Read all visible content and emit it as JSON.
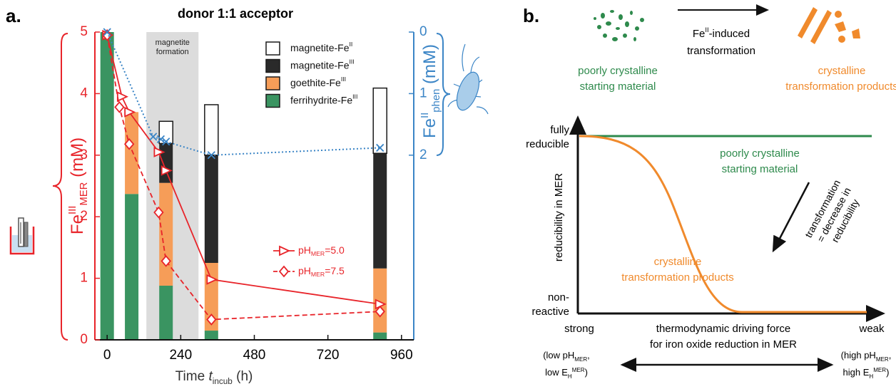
{
  "chart_data": {
    "type": "bar",
    "label": "a.",
    "title": "donor 1:1 acceptor",
    "xlabel": [
      {
        "t": "Time "
      },
      {
        "t": "t",
        "italic": true
      },
      {
        "t": "incub",
        "sub": true
      },
      {
        "t": " (h)"
      }
    ],
    "ylabel": [
      {
        "t": "Fe"
      },
      {
        "t": "III",
        "sup": true
      },
      {
        "t": "MER",
        "sub": true
      },
      {
        "t": " (mM)"
      }
    ],
    "y2label": [
      {
        "t": "Fe"
      },
      {
        "t": "II",
        "sup": true
      },
      {
        "t": "phen",
        "sub": true
      },
      {
        "t": " (mM)"
      }
    ],
    "x": [
      0,
      80,
      192,
      340,
      890
    ],
    "xlim": [
      -40,
      1000
    ],
    "xticks": [
      0,
      240,
      480,
      720,
      960
    ],
    "ylim": [
      0,
      5
    ],
    "yticks": [
      0,
      1,
      2,
      3,
      4,
      5
    ],
    "y2lim": [
      5,
      0
    ],
    "y2ticks": [
      0,
      1,
      2
    ],
    "shaded": {
      "x": [
        128,
        298
      ],
      "label": [
        "magnetite",
        "formation"
      ]
    },
    "series": [
      {
        "name": "ferrihydrite-Fe",
        "name_sup": "III",
        "type": "bar",
        "color": "#3a9461",
        "values": [
          5,
          2.37,
          0.88,
          0.15,
          0.12
        ]
      },
      {
        "name": "goethite-Fe",
        "name_sup": "III",
        "type": "bar",
        "color": "#f69d58",
        "values": [
          0,
          1.33,
          1.67,
          1.1,
          1.04
        ]
      },
      {
        "name": "magnetite-Fe",
        "name_sup": "III",
        "type": "bar",
        "color": "#2a2a2a",
        "values": [
          0,
          0,
          0.64,
          1.75,
          1.87
        ]
      },
      {
        "name": "magnetite-Fe",
        "name_sup": "II",
        "type": "bar",
        "color": "#ffffff",
        "values": [
          0,
          0,
          0.36,
          0.82,
          1.06
        ]
      },
      {
        "name": "pH",
        "name_sub": "MER",
        "name_suffix": "=5.0",
        "type": "line",
        "marker": "triangle",
        "color": "#e8242a",
        "x": [
          0,
          48,
          72,
          168,
          192,
          340,
          890
        ],
        "values": [
          4.95,
          3.95,
          3.7,
          3.05,
          2.75,
          0.98,
          0.58
        ]
      },
      {
        "name": "pH",
        "name_sub": "MER",
        "name_suffix": "=7.5",
        "type": "line",
        "marker": "diamond",
        "dashed": true,
        "color": "#e8242a",
        "x": [
          0,
          40,
          72,
          168,
          192,
          340,
          890
        ],
        "values": [
          4.95,
          3.78,
          3.18,
          2.07,
          1.28,
          0.33,
          0.46
        ]
      },
      {
        "type": "line",
        "axis": "y2",
        "marker": "x",
        "dotted": true,
        "color": "#3b85c6",
        "x": [
          0,
          150,
          175,
          192,
          340,
          890
        ],
        "values": [
          0,
          1.7,
          1.74,
          1.78,
          2.0,
          1.88
        ]
      }
    ]
  },
  "diagram": {
    "label": "b.",
    "arrow_label": [
      [
        {
          "t": "Fe"
        },
        {
          "t": "II",
          "sup": true
        },
        {
          "t": "-induced"
        }
      ],
      "transformation"
    ],
    "start_label": [
      "poorly crystalline",
      "starting material"
    ],
    "product_label": [
      "crystalline",
      "transformation products"
    ],
    "ylabel": [
      "reducibility in MER"
    ],
    "y_top": [
      "fully",
      "reducible"
    ],
    "y_bottom": [
      "non-",
      "reactive"
    ],
    "curve_green_label": [
      "poorly crystalline",
      "starting material"
    ],
    "curve_orange_label": [
      "crystalline",
      "transformation products"
    ],
    "trend_label": [
      "transformation",
      "= decrease in",
      "reducibility"
    ],
    "x_left": [
      "strong"
    ],
    "x_right": [
      "weak"
    ],
    "xlabel": [
      "thermodynamic driving force",
      "for iron oxide reduction in MER"
    ],
    "left_condition": [
      [
        {
          "t": "(low pH"
        },
        {
          "t": "MER",
          "sub": true
        },
        {
          "t": ","
        }
      ],
      [
        {
          "t": "low E"
        },
        {
          "t": "H",
          "sub": true
        },
        {
          "t": "MER",
          "sup": true
        },
        {
          "t": ")"
        }
      ]
    ],
    "right_condition": [
      [
        {
          "t": "(high pH"
        },
        {
          "t": "MER",
          "sub": true
        },
        {
          "t": ","
        }
      ],
      [
        {
          "t": "high E"
        },
        {
          "t": "H",
          "sub": true
        },
        {
          "t": "MER",
          "sup": true
        },
        {
          "t": ")"
        }
      ]
    ]
  }
}
